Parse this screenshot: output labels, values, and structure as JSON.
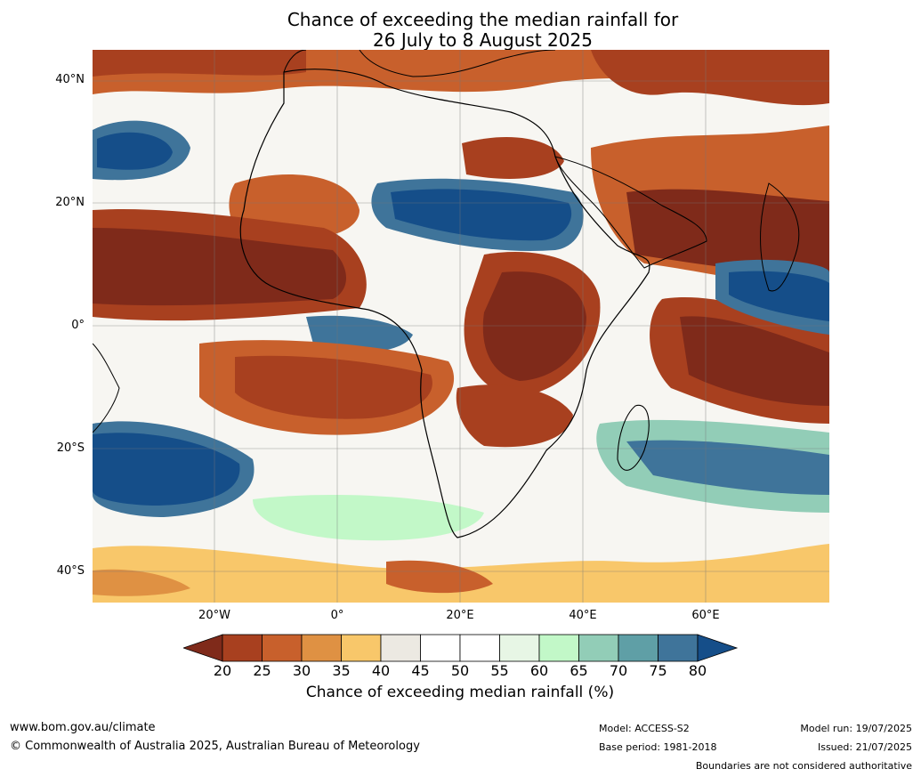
{
  "title_line1": "Chance of exceeding the median rainfall for",
  "title_line2": "26 July to 8 August 2025",
  "lat_labels": [
    "40°N",
    "20°N",
    "0°",
    "20°S",
    "40°S"
  ],
  "lon_labels": [
    "20°W",
    "0°",
    "20°E",
    "40°E",
    "60°E"
  ],
  "legend": {
    "ticks": [
      "20",
      "25",
      "30",
      "35",
      "40",
      "45",
      "50",
      "55",
      "60",
      "65",
      "70",
      "75",
      "80"
    ],
    "colors": [
      "#7f2a1a",
      "#a8401f",
      "#c8602c",
      "#df9143",
      "#f8c76a",
      "#ece9e2",
      "#ffffff",
      "#ffffff",
      "#e7f6e5",
      "#c2f8c8",
      "#92cdb7",
      "#5f9fa6",
      "#3f749a",
      "#154e89"
    ],
    "label": "Chance of exceeding median rainfall (%)"
  },
  "footer": {
    "website": "www.bom.gov.au/climate",
    "copyright": "© Commonwealth of Australia 2025, Australian Bureau of Meteorology",
    "model": "Model: ACCESS-S2",
    "base_period": "Base period: 1981-2018",
    "model_run": "Model run: 19/07/2025",
    "issued": "Issued: 21/07/2025",
    "disclaimer": "Boundaries are not considered authoritative"
  }
}
